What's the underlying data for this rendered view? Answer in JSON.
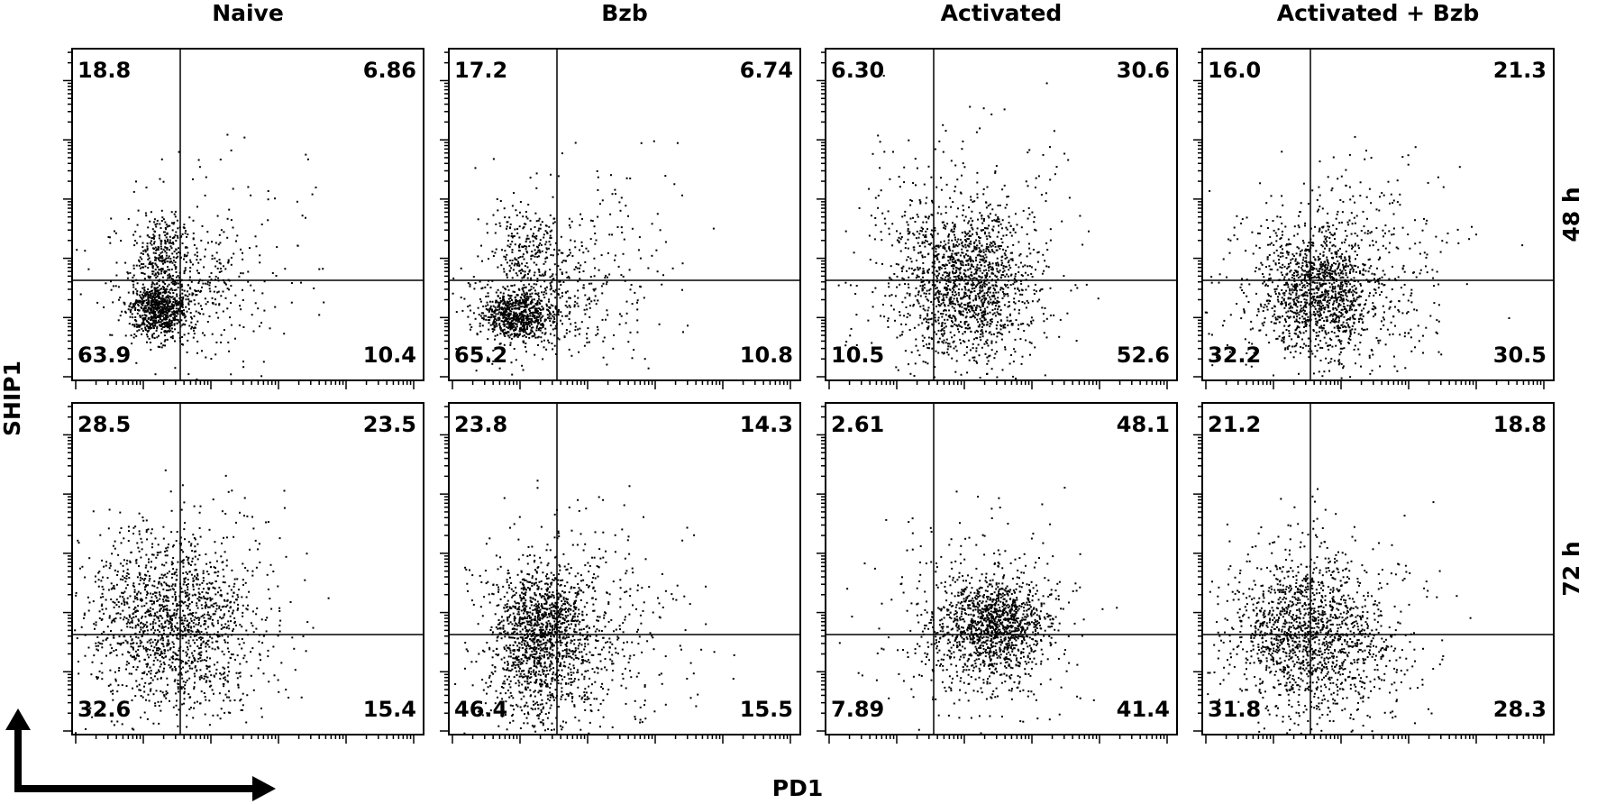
{
  "chart_data": {
    "type": "scatter",
    "title": "",
    "xlabel": "PD1",
    "ylabel": "SHIP1",
    "columns": [
      "Naive",
      "Bzb",
      "Activated",
      "Activated + Bzb"
    ],
    "rows": [
      "48 h",
      "72 h"
    ],
    "grid": false,
    "legend": "none",
    "quadrant_order": [
      "upper-left",
      "upper-right",
      "lower-left",
      "lower-right"
    ],
    "panels": [
      {
        "row": "48 h",
        "column": "Naive",
        "quadrants": [
          "18.8",
          "6.86",
          "63.9",
          "10.4"
        ]
      },
      {
        "row": "48 h",
        "column": "Bzb",
        "quadrants": [
          "17.2",
          "6.74",
          "65.2",
          "10.8"
        ]
      },
      {
        "row": "48 h",
        "column": "Activated",
        "quadrants": [
          "6.30",
          "30.6",
          "10.5",
          "52.6"
        ]
      },
      {
        "row": "48 h",
        "column": "Activated + Bzb",
        "quadrants": [
          "16.0",
          "21.3",
          "32.2",
          "30.5"
        ]
      },
      {
        "row": "72 h",
        "column": "Naive",
        "quadrants": [
          "28.5",
          "23.5",
          "32.6",
          "15.4"
        ]
      },
      {
        "row": "72 h",
        "column": "Bzb",
        "quadrants": [
          "23.8",
          "14.3",
          "46.4",
          "15.5"
        ]
      },
      {
        "row": "72 h",
        "column": "Activated",
        "quadrants": [
          "2.61",
          "48.1",
          "7.89",
          "41.4"
        ]
      },
      {
        "row": "72 h",
        "column": "Activated + Bzb",
        "quadrants": [
          "21.2",
          "18.8",
          "31.8",
          "28.3"
        ]
      }
    ]
  }
}
